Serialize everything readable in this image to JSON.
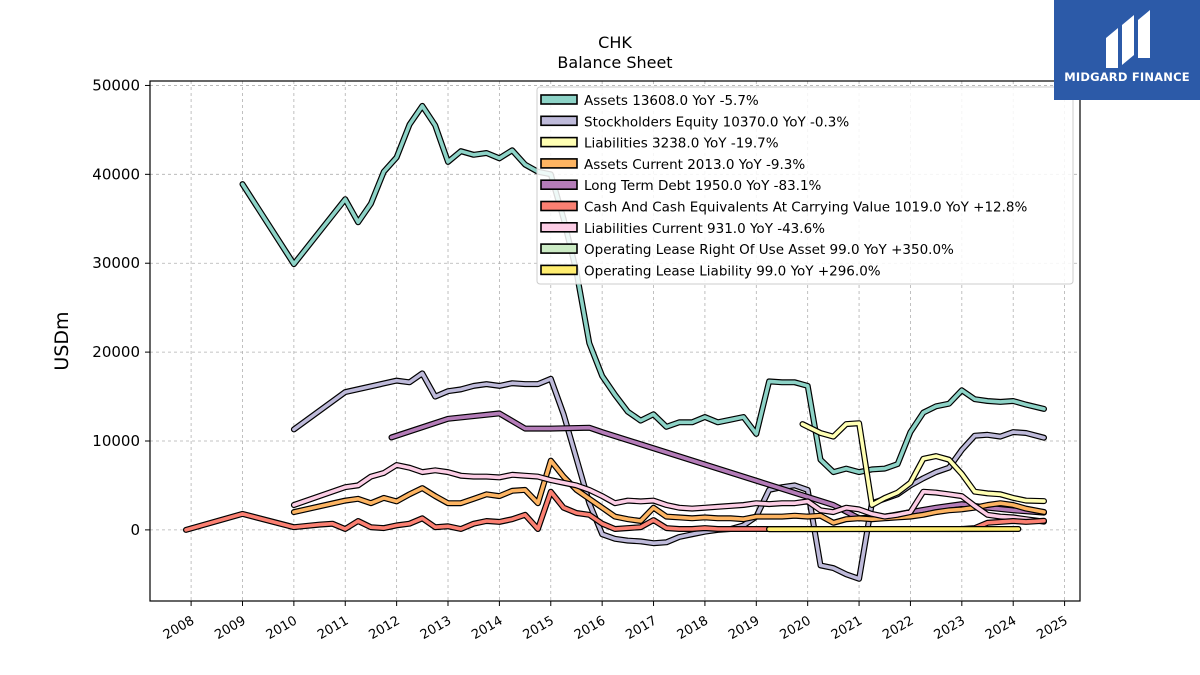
{
  "chart_data": {
    "type": "line",
    "title": "CHK",
    "subtitle": "Balance  Sheet",
    "ylabel": "USDm",
    "xlabel": "",
    "xlim": [
      2007.2,
      2025.3
    ],
    "ylim": [
      -8000,
      50500
    ],
    "yticks": [
      0,
      10000,
      20000,
      30000,
      40000,
      50000
    ],
    "xticks": [
      2008,
      2009,
      2010,
      2011,
      2012,
      2013,
      2014,
      2015,
      2016,
      2017,
      2018,
      2019,
      2020,
      2021,
      2022,
      2023,
      2024,
      2025
    ],
    "grid": true,
    "legend_position": "top-right",
    "series": [
      {
        "name": "Assets  13608.0 YoY -5.7%",
        "color": "#8dd3c7",
        "x": [
          2009.0,
          2010.0,
          2011.0,
          2011.25,
          2011.5,
          2011.75,
          2012.0,
          2012.25,
          2012.5,
          2012.75,
          2013.0,
          2013.25,
          2013.5,
          2013.75,
          2014.0,
          2014.25,
          2014.5,
          2014.75,
          2015.0,
          2015.25,
          2015.5,
          2015.75,
          2016.0,
          2016.25,
          2016.5,
          2016.75,
          2017.0,
          2017.25,
          2017.5,
          2017.75,
          2018.0,
          2018.25,
          2018.5,
          2018.75,
          2019.0,
          2019.25,
          2019.5,
          2019.75,
          2020.0,
          2020.25,
          2020.5,
          2020.75,
          2021.0,
          2021.25,
          2021.5,
          2021.75,
          2022.0,
          2022.25,
          2022.5,
          2022.75,
          2023.0,
          2023.25,
          2023.5,
          2023.75,
          2024.0,
          2024.25,
          2024.6
        ],
        "y": [
          38900,
          29900,
          37200,
          34600,
          36700,
          40300,
          41900,
          45600,
          47700,
          45500,
          41400,
          42600,
          42200,
          42400,
          41800,
          42700,
          41100,
          40300,
          40000,
          35000,
          29000,
          21000,
          17300,
          15200,
          13300,
          12300,
          13000,
          11600,
          12100,
          12100,
          12700,
          12100,
          12400,
          12700,
          10800,
          16700,
          16600,
          16600,
          16200,
          7900,
          6500,
          6900,
          6500,
          6800,
          6900,
          7400,
          11000,
          13200,
          13900,
          14200,
          15700,
          14700,
          14500,
          14400,
          14500,
          14100,
          13608
        ]
      },
      {
        "name": "Stockholders Equity  10370.0 YoY -0.3%",
        "color": "#bebada",
        "x": [
          2010.0,
          2011.0,
          2012.0,
          2012.25,
          2012.5,
          2012.75,
          2013.0,
          2013.25,
          2013.5,
          2013.75,
          2014.0,
          2014.25,
          2014.5,
          2014.75,
          2015.0,
          2015.25,
          2015.5,
          2015.75,
          2016.0,
          2016.25,
          2016.5,
          2016.75,
          2017.0,
          2017.25,
          2017.5,
          2017.75,
          2018.0,
          2018.25,
          2018.5,
          2018.75,
          2019.0,
          2019.25,
          2019.5,
          2019.75,
          2020.0,
          2020.25,
          2020.5,
          2020.75,
          2021.0,
          2021.25,
          2021.5,
          2021.75,
          2022.0,
          2022.25,
          2022.5,
          2022.75,
          2023.0,
          2023.25,
          2023.5,
          2023.75,
          2024.0,
          2024.25,
          2024.6
        ],
        "y": [
          11300,
          15500,
          16800,
          16600,
          17600,
          15000,
          15600,
          15800,
          16200,
          16400,
          16200,
          16500,
          16400,
          16400,
          17000,
          13000,
          8000,
          3000,
          -500,
          -1000,
          -1200,
          -1300,
          -1500,
          -1400,
          -800,
          -500,
          -200,
          0,
          100,
          500,
          1500,
          4500,
          4800,
          5000,
          4500,
          -4000,
          -4300,
          -5000,
          -5500,
          3000,
          3500,
          4000,
          5000,
          5800,
          6500,
          7000,
          9000,
          10600,
          10700,
          10500,
          11000,
          10900,
          10370
        ]
      },
      {
        "name": "Liabilities  3238.0 YoY -19.7%",
        "color": "#ffffb3",
        "x": [
          2019.9,
          2020.25,
          2020.5,
          2020.75,
          2021.0,
          2021.25,
          2021.5,
          2021.75,
          2022.0,
          2022.25,
          2022.5,
          2022.75,
          2023.0,
          2023.25,
          2023.5,
          2023.75,
          2024.0,
          2024.25,
          2024.6
        ],
        "y": [
          11900,
          10900,
          10500,
          11900,
          12000,
          2800,
          3600,
          4200,
          5300,
          8000,
          8300,
          7900,
          6300,
          4300,
          4100,
          4000,
          3600,
          3300,
          3238
        ]
      },
      {
        "name": "Assets Current  2013.0 YoY -9.3%",
        "color": "#fdb462",
        "x": [
          2010.0,
          2011.0,
          2011.25,
          2011.5,
          2011.75,
          2012.0,
          2012.25,
          2012.5,
          2012.75,
          2013.0,
          2013.25,
          2013.5,
          2013.75,
          2014.0,
          2014.25,
          2014.5,
          2014.75,
          2015.0,
          2015.25,
          2015.5,
          2015.75,
          2016.0,
          2016.25,
          2016.5,
          2016.75,
          2017.0,
          2017.25,
          2017.5,
          2017.75,
          2018.0,
          2018.25,
          2018.5,
          2018.75,
          2019.0,
          2019.25,
          2019.5,
          2019.75,
          2020.0,
          2020.25,
          2020.5,
          2020.75,
          2021.0,
          2021.25,
          2021.5,
          2021.75,
          2022.0,
          2022.25,
          2022.5,
          2022.75,
          2023.0,
          2023.25,
          2023.5,
          2023.75,
          2024.0,
          2024.25,
          2024.6
        ],
        "y": [
          2000,
          3300,
          3500,
          3000,
          3600,
          3200,
          4000,
          4700,
          3800,
          3000,
          3000,
          3500,
          4000,
          3800,
          4400,
          4500,
          3000,
          7800,
          6000,
          4500,
          3500,
          2500,
          1500,
          1200,
          1000,
          2500,
          1500,
          1400,
          1300,
          1400,
          1300,
          1300,
          1200,
          1500,
          1500,
          1500,
          1600,
          1500,
          1600,
          800,
          1200,
          1300,
          1200,
          1300,
          1400,
          1500,
          1700,
          2000,
          2200,
          2300,
          2500,
          2800,
          3000,
          2800,
          2400,
          2013
        ]
      },
      {
        "name": "Long Term Debt  1950.0 YoY -83.1%",
        "color": "#b47cb8",
        "x": [
          2011.9,
          2013.0,
          2014.0,
          2014.5,
          2015.0,
          2015.75,
          2016.0,
          2020.5,
          2021.0,
          2021.5,
          2022.0,
          2022.5,
          2023.0,
          2023.5,
          2024.0,
          2024.6
        ],
        "y": [
          10400,
          12500,
          13100,
          11400,
          11400,
          11500,
          11000,
          2800,
          1300,
          1500,
          2000,
          2500,
          2900,
          2500,
          2200,
          1950
        ]
      },
      {
        "name": "Cash And Cash Equivalents At Carrying Value  1019.0 YoY +12.8%",
        "color": "#fb8072",
        "x": [
          2007.9,
          2009.0,
          2010.0,
          2010.5,
          2010.75,
          2011.0,
          2011.25,
          2011.5,
          2011.75,
          2012.0,
          2012.25,
          2012.5,
          2012.75,
          2013.0,
          2013.25,
          2013.5,
          2013.75,
          2014.0,
          2014.25,
          2014.5,
          2014.75,
          2015.0,
          2015.25,
          2015.5,
          2015.75,
          2016.0,
          2016.25,
          2016.5,
          2016.75,
          2017.0,
          2017.25,
          2017.5,
          2017.75,
          2018.0,
          2018.25,
          2018.5,
          2018.75,
          2019.0,
          2019.25,
          2019.5,
          2019.75,
          2020.0,
          2020.25,
          2020.5,
          2020.75,
          2021.0,
          2021.25,
          2021.5,
          2021.75,
          2022.0,
          2022.25,
          2022.5,
          2022.75,
          2023.0,
          2023.25,
          2023.5,
          2023.75,
          2024.0,
          2024.25,
          2024.6
        ],
        "y": [
          0,
          1800,
          300,
          600,
          700,
          100,
          1000,
          300,
          200,
          500,
          700,
          1300,
          300,
          400,
          100,
          700,
          1000,
          900,
          1200,
          1700,
          100,
          4300,
          2500,
          1900,
          1700,
          700,
          100,
          200,
          300,
          1100,
          200,
          100,
          100,
          200,
          100,
          100,
          100,
          100,
          100,
          100,
          100,
          100,
          100,
          100,
          100,
          100,
          100,
          100,
          100,
          100,
          100,
          100,
          100,
          100,
          200,
          800,
          900,
          1000,
          900,
          1019
        ]
      },
      {
        "name": "Liabilities Current  931.0 YoY -43.6%",
        "color": "#fccde5",
        "x": [
          2010.0,
          2010.5,
          2011.0,
          2011.25,
          2011.5,
          2011.75,
          2012.0,
          2012.25,
          2012.5,
          2012.75,
          2013.0,
          2013.25,
          2013.5,
          2013.75,
          2014.0,
          2014.25,
          2014.5,
          2014.75,
          2015.0,
          2015.25,
          2015.5,
          2015.75,
          2016.0,
          2016.25,
          2016.5,
          2016.75,
          2017.0,
          2017.25,
          2017.5,
          2017.75,
          2018.0,
          2018.25,
          2018.5,
          2018.75,
          2019.0,
          2019.25,
          2019.5,
          2019.75,
          2020.0,
          2020.25,
          2020.5,
          2020.75,
          2021.0,
          2021.25,
          2021.5,
          2021.75,
          2022.0,
          2022.25,
          2022.5,
          2022.75,
          2023.0,
          2023.25,
          2023.5,
          2023.75,
          2024.0,
          2024.25,
          2024.6
        ],
        "y": [
          2800,
          3800,
          4800,
          5000,
          6000,
          6400,
          7300,
          7000,
          6500,
          6700,
          6500,
          6100,
          6000,
          6000,
          5900,
          6200,
          6100,
          6000,
          5600,
          5300,
          5000,
          4500,
          3800,
          3000,
          3300,
          3200,
          3300,
          2800,
          2500,
          2400,
          2500,
          2600,
          2700,
          2800,
          3000,
          2900,
          3000,
          3000,
          3200,
          2200,
          2000,
          2500,
          2300,
          1800,
          1500,
          1700,
          2000,
          4300,
          4200,
          4000,
          3800,
          2700,
          1700,
          1500,
          1400,
          1200,
          931
        ]
      },
      {
        "name": "Operating Lease Right Of Use Asset  99.0 YoY +350.0%",
        "color": "#ccebc5",
        "x": [
          2019.25,
          2021.0,
          2023.0,
          2024.1
        ],
        "y": [
          100,
          100,
          90,
          99
        ]
      },
      {
        "name": "Operating Lease Liability  99.0 YoY +296.0%",
        "color": "#ffed6f",
        "x": [
          2019.25,
          2021.0,
          2023.0,
          2024.1
        ],
        "y": [
          80,
          90,
          95,
          99
        ]
      }
    ]
  },
  "brand": {
    "name": "MIDGARD FINANCE",
    "bg_color": "#2c5aa8"
  }
}
